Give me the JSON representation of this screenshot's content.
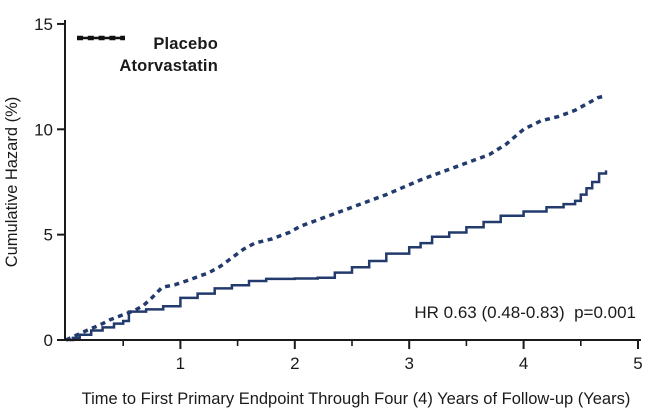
{
  "figure": {
    "background": "#ffffff",
    "curve_color": "#233a6d",
    "axis_color": "#1a1a1a",
    "legend_line_color": "#111111"
  },
  "chart_data": {
    "type": "line",
    "subtype": "cumulative-hazard-step-curves",
    "title": "",
    "xlabel": "Time to First Primary Endpoint Through Four (4) Years of Follow-up (Years)",
    "ylabel": "Cumulative Hazard (%)",
    "xlim": [
      0,
      5
    ],
    "ylim": [
      0,
      15
    ],
    "x_major_ticks": [
      1,
      2,
      3,
      4,
      5
    ],
    "x_minor_ticks": [
      0.5,
      1.5,
      2.5,
      3.5,
      4.5
    ],
    "y_ticks": [
      0,
      5,
      10,
      15
    ],
    "grid": false,
    "legend_position": "top-left-inside",
    "annotation": "HR 0.63 (0.48-0.83)  p=0.001",
    "legend": [
      {
        "label": "Placebo",
        "style": "dashed"
      },
      {
        "label": "Atorvastatin",
        "style": "solid"
      }
    ],
    "series": [
      {
        "name": "Placebo",
        "style": "dashed",
        "line_shape": "linear",
        "points": [
          [
            0,
            0
          ],
          [
            0.06,
            0.15
          ],
          [
            0.12,
            0.3
          ],
          [
            0.2,
            0.5
          ],
          [
            0.3,
            0.72
          ],
          [
            0.38,
            0.95
          ],
          [
            0.5,
            1.2
          ],
          [
            0.6,
            1.4
          ],
          [
            0.68,
            1.65
          ],
          [
            0.76,
            2.05
          ],
          [
            0.84,
            2.5
          ],
          [
            0.95,
            2.62
          ],
          [
            1.05,
            2.8
          ],
          [
            1.15,
            3.0
          ],
          [
            1.25,
            3.2
          ],
          [
            1.35,
            3.5
          ],
          [
            1.45,
            3.9
          ],
          [
            1.55,
            4.3
          ],
          [
            1.65,
            4.6
          ],
          [
            1.8,
            4.8
          ],
          [
            1.95,
            5.1
          ],
          [
            2.05,
            5.4
          ],
          [
            2.2,
            5.7
          ],
          [
            2.35,
            6.0
          ],
          [
            2.5,
            6.3
          ],
          [
            2.65,
            6.6
          ],
          [
            2.8,
            6.9
          ],
          [
            2.95,
            7.25
          ],
          [
            3.1,
            7.6
          ],
          [
            3.25,
            7.9
          ],
          [
            3.4,
            8.2
          ],
          [
            3.55,
            8.5
          ],
          [
            3.7,
            8.8
          ],
          [
            3.85,
            9.3
          ],
          [
            4.0,
            10.0
          ],
          [
            4.15,
            10.4
          ],
          [
            4.3,
            10.6
          ],
          [
            4.45,
            10.9
          ],
          [
            4.55,
            11.2
          ],
          [
            4.65,
            11.5
          ],
          [
            4.72,
            11.6
          ]
        ]
      },
      {
        "name": "Atorvastatin",
        "style": "solid",
        "line_shape": "step-after",
        "points": [
          [
            0,
            0
          ],
          [
            0.06,
            0.1
          ],
          [
            0.12,
            0.25
          ],
          [
            0.22,
            0.45
          ],
          [
            0.32,
            0.6
          ],
          [
            0.42,
            0.78
          ],
          [
            0.5,
            0.9
          ],
          [
            0.55,
            1.35
          ],
          [
            0.7,
            1.45
          ],
          [
            0.85,
            1.6
          ],
          [
            1.0,
            2.0
          ],
          [
            1.15,
            2.2
          ],
          [
            1.3,
            2.45
          ],
          [
            1.45,
            2.6
          ],
          [
            1.6,
            2.8
          ],
          [
            1.75,
            2.9
          ],
          [
            2.0,
            2.92
          ],
          [
            2.2,
            2.95
          ],
          [
            2.35,
            3.2
          ],
          [
            2.5,
            3.45
          ],
          [
            2.65,
            3.75
          ],
          [
            2.8,
            4.1
          ],
          [
            3.0,
            4.4
          ],
          [
            3.1,
            4.6
          ],
          [
            3.2,
            4.9
          ],
          [
            3.35,
            5.1
          ],
          [
            3.5,
            5.35
          ],
          [
            3.65,
            5.6
          ],
          [
            3.8,
            5.9
          ],
          [
            4.0,
            6.1
          ],
          [
            4.2,
            6.3
          ],
          [
            4.35,
            6.45
          ],
          [
            4.45,
            6.6
          ],
          [
            4.5,
            6.9
          ],
          [
            4.55,
            7.2
          ],
          [
            4.6,
            7.5
          ],
          [
            4.66,
            7.9
          ],
          [
            4.72,
            8.05
          ]
        ]
      }
    ]
  }
}
